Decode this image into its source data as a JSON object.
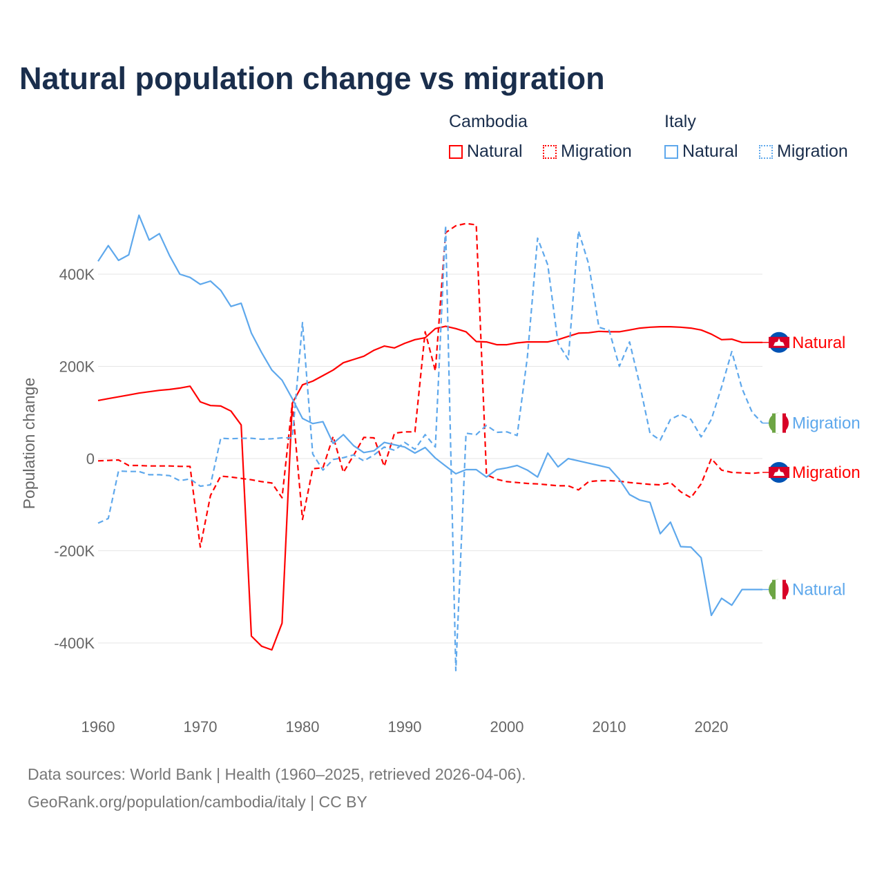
{
  "chart_data": {
    "type": "line",
    "title": "Natural population change vs migration",
    "ylabel": "Population change",
    "xlabel": "",
    "xlim": [
      1960,
      2025
    ],
    "ylim": [
      -460000,
      530000
    ],
    "x_ticks": [
      "1960",
      "1970",
      "1980",
      "1990",
      "2000",
      "2010",
      "2020"
    ],
    "y_ticks": [
      {
        "v": 400,
        "label": "400K"
      },
      {
        "v": 200,
        "label": "200K"
      },
      {
        "v": 0,
        "label": "0"
      },
      {
        "v": -200,
        "label": "-200K"
      },
      {
        "v": -400,
        "label": "-400K"
      }
    ],
    "units": "thousands",
    "legend": {
      "groups": [
        {
          "name": "Cambodia",
          "items": [
            "Natural",
            "Migration"
          ]
        },
        {
          "name": "Italy",
          "items": [
            "Natural",
            "Migration"
          ]
        }
      ],
      "placement": "top-right"
    },
    "x_start": 1960,
    "series": [
      {
        "name": "Cambodia Natural",
        "country": "Cambodia",
        "color": "#ff0000",
        "dashed": false,
        "end_label": "Natural",
        "values": [
          126,
          130,
          134,
          138,
          142,
          145,
          148,
          150,
          153,
          157,
          123,
          115,
          114,
          103,
          73,
          -385,
          -407,
          -415,
          -357,
          120,
          160,
          168,
          180,
          192,
          208,
          215,
          222,
          235,
          244,
          240,
          250,
          258,
          262,
          282,
          287,
          282,
          275,
          254,
          253,
          247,
          247,
          251,
          253,
          253,
          253,
          258,
          265,
          272,
          273,
          276,
          275,
          275,
          279,
          283,
          285,
          286,
          286,
          285,
          283,
          279,
          270,
          258,
          259,
          252,
          252,
          252
        ]
      },
      {
        "name": "Cambodia Migration",
        "country": "Cambodia",
        "color": "#ff0000",
        "dashed": true,
        "end_label": "Migration",
        "values": [
          -5,
          -4,
          -3,
          -15,
          -15,
          -16,
          -16,
          -16,
          -17,
          -17,
          -192,
          -80,
          -38,
          -40,
          -43,
          -46,
          -50,
          -53,
          -85,
          120,
          -132,
          -22,
          -20,
          48,
          -30,
          7,
          46,
          45,
          -17,
          55,
          58,
          58,
          275,
          190,
          490,
          505,
          510,
          507,
          -35,
          -45,
          -50,
          -52,
          -54,
          -55,
          -57,
          -59,
          -59,
          -68,
          -50,
          -48,
          -48,
          -49,
          -52,
          -54,
          -56,
          -57,
          -52,
          -72,
          -85,
          -55,
          0,
          -25,
          -30,
          -31,
          -32,
          -30
        ]
      },
      {
        "name": "Italy Natural",
        "country": "Italy",
        "color": "#5ea8ec",
        "dashed": false,
        "end_label": "Natural",
        "values": [
          428,
          462,
          430,
          442,
          528,
          474,
          488,
          440,
          400,
          393,
          378,
          385,
          365,
          330,
          337,
          272,
          230,
          192,
          170,
          130,
          87,
          76,
          80,
          33,
          52,
          28,
          13,
          17,
          35,
          30,
          25,
          12,
          24,
          1,
          -16,
          -33,
          -24,
          -24,
          -40,
          -24,
          -20,
          -15,
          -25,
          -40,
          12,
          -18,
          0,
          -5,
          -10,
          -15,
          -20,
          -45,
          -78,
          -90,
          -95,
          -163,
          -138,
          -191,
          -192,
          -215,
          -340,
          -303,
          -318,
          -284,
          -284,
          -284
        ]
      },
      {
        "name": "Italy Migration",
        "country": "Italy",
        "color": "#5ea8ec",
        "dashed": true,
        "end_label": "Migration",
        "values": [
          -140,
          -130,
          -27,
          -28,
          -28,
          -35,
          -35,
          -37,
          -48,
          -44,
          -60,
          -57,
          44,
          43,
          44,
          44,
          42,
          43,
          45,
          45,
          295,
          10,
          -25,
          -2,
          2,
          8,
          -5,
          8,
          25,
          18,
          35,
          20,
          52,
          25,
          505,
          -460,
          55,
          52,
          72,
          57,
          58,
          50,
          220,
          478,
          420,
          250,
          215,
          494,
          422,
          285,
          278,
          200,
          253,
          160,
          55,
          40,
          85,
          96,
          85,
          47,
          85,
          155,
          232,
          152,
          100,
          77
        ]
      }
    ]
  },
  "footer": {
    "line1": "Data sources: World Bank | Health (1960–2025, retrieved 2026-04-06).",
    "line2": "GeoRank.org/population/cambodia/italy | CC BY"
  }
}
